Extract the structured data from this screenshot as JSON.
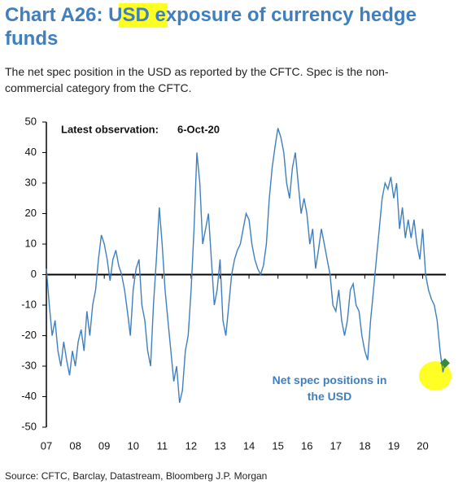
{
  "chart_data": {
    "type": "line",
    "title": "Chart A26: USD exposure of currency hedge funds",
    "subtitle": "The net spec position in the USD as reported by the CFTC. Spec is the non-commercial category from the CFTC.",
    "annotations": [
      "Latest observation:",
      "6-Oct-20"
    ],
    "source": "Source: CFTC, Barclay, Datastream, Bloomberg J.P. Morgan",
    "x": [
      7.0,
      7.1,
      7.2,
      7.3,
      7.4,
      7.5,
      7.6,
      7.7,
      7.8,
      7.9,
      8.0,
      8.1,
      8.2,
      8.3,
      8.4,
      8.5,
      8.6,
      8.7,
      8.8,
      8.9,
      9.0,
      9.1,
      9.2,
      9.3,
      9.4,
      9.5,
      9.6,
      9.7,
      9.8,
      9.9,
      10.0,
      10.1,
      10.2,
      10.3,
      10.4,
      10.5,
      10.6,
      10.7,
      10.8,
      10.9,
      11.0,
      11.1,
      11.2,
      11.3,
      11.4,
      11.5,
      11.6,
      11.7,
      11.8,
      11.9,
      12.0,
      12.1,
      12.2,
      12.3,
      12.4,
      12.5,
      12.6,
      12.7,
      12.8,
      12.9,
      13.0,
      13.1,
      13.2,
      13.3,
      13.4,
      13.5,
      13.6,
      13.7,
      13.8,
      13.9,
      14.0,
      14.1,
      14.2,
      14.3,
      14.4,
      14.5,
      14.6,
      14.7,
      14.8,
      14.9,
      15.0,
      15.1,
      15.2,
      15.3,
      15.4,
      15.5,
      15.6,
      15.7,
      15.8,
      15.9,
      16.0,
      16.1,
      16.2,
      16.3,
      16.4,
      16.5,
      16.6,
      16.7,
      16.8,
      16.9,
      17.0,
      17.1,
      17.2,
      17.3,
      17.4,
      17.5,
      17.6,
      17.7,
      17.8,
      17.9,
      18.0,
      18.1,
      18.2,
      18.3,
      18.4,
      18.5,
      18.6,
      18.7,
      18.8,
      18.9,
      19.0,
      19.1,
      19.2,
      19.3,
      19.4,
      19.5,
      19.6,
      19.7,
      19.8,
      19.9,
      20.0,
      20.1,
      20.2,
      20.3,
      20.4,
      20.5,
      20.6,
      20.7,
      20.77
    ],
    "series": [
      {
        "name": "Net spec positions in the USD",
        "color": "#3f7fbf",
        "values": [
          2,
          -10,
          -20,
          -15,
          -25,
          -30,
          -22,
          -28,
          -33,
          -25,
          -30,
          -22,
          -18,
          -25,
          -12,
          -20,
          -10,
          -5,
          5,
          13,
          10,
          5,
          -2,
          5,
          8,
          3,
          0,
          -5,
          -12,
          -20,
          -5,
          2,
          5,
          -10,
          -15,
          -25,
          -30,
          -10,
          5,
          22,
          10,
          -5,
          -15,
          -25,
          -35,
          -30,
          -42,
          -38,
          -25,
          -20,
          -5,
          15,
          40,
          30,
          10,
          15,
          20,
          5,
          -10,
          -5,
          5,
          -15,
          -20,
          -10,
          0,
          5,
          8,
          10,
          15,
          20,
          18,
          10,
          5,
          2,
          0,
          3,
          10,
          25,
          35,
          42,
          48,
          45,
          40,
          30,
          25,
          35,
          40,
          30,
          20,
          25,
          20,
          10,
          15,
          2,
          8,
          15,
          10,
          5,
          0,
          -10,
          -12,
          -5,
          -15,
          -20,
          -15,
          -5,
          -3,
          -10,
          -12,
          -20,
          -25,
          -28,
          -15,
          -5,
          5,
          15,
          25,
          30,
          28,
          32,
          25,
          30,
          15,
          22,
          12,
          18,
          12,
          18,
          10,
          5,
          15,
          0,
          -5,
          -8,
          -10,
          -15,
          -25,
          -32,
          -29
        ]
      }
    ],
    "xlim": [
      7,
      20.8
    ],
    "xticks": [
      {
        "value": 7,
        "label": "07"
      },
      {
        "value": 8,
        "label": "08"
      },
      {
        "value": 9,
        "label": "09"
      },
      10,
      11,
      12,
      13,
      14,
      15,
      16,
      17,
      18,
      19,
      20
    ],
    "ylim": [
      -50,
      50
    ],
    "yticks": [
      -50,
      -40,
      -30,
      -20,
      -10,
      0,
      10,
      20,
      30,
      40,
      50
    ]
  }
}
